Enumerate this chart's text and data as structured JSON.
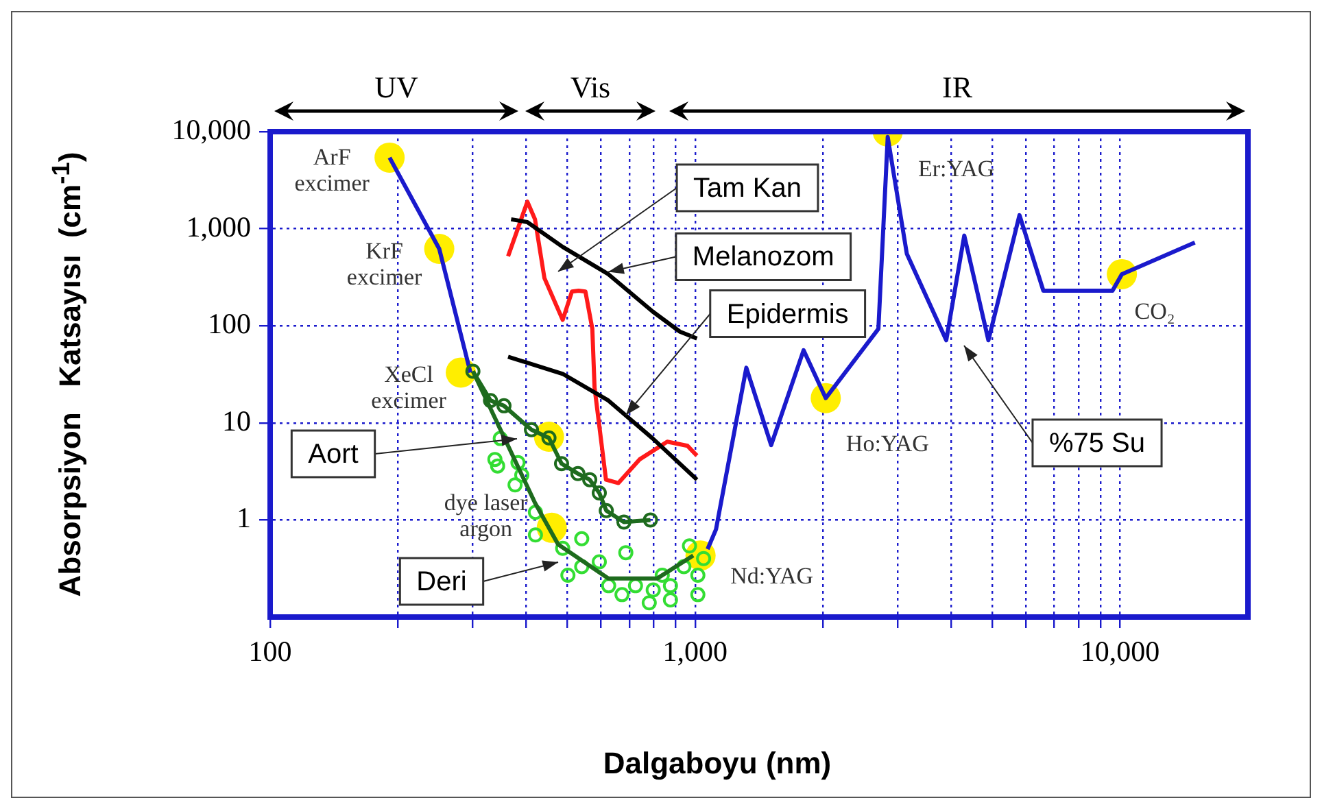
{
  "chart_data": {
    "type": "line",
    "xlabel": "Dalgaboyu (nm)",
    "ylabel": "Absorpsiyon   Katsayısı  (cm$^{-1}$)",
    "log": "xy",
    "grid": true,
    "legend": false,
    "xlim": [
      100,
      20000
    ],
    "ylim": [
      0.1,
      10000
    ],
    "xticks": [
      {
        "value": 100,
        "label": "100"
      },
      {
        "value": 200,
        "label": null
      },
      {
        "value": 300,
        "label": null
      },
      {
        "value": 400,
        "label": null
      },
      {
        "value": 500,
        "label": null
      },
      {
        "value": 600,
        "label": null
      },
      {
        "value": 700,
        "label": null
      },
      {
        "value": 800,
        "label": null
      },
      {
        "value": 900,
        "label": null
      },
      {
        "value": 1000,
        "label": "1,000"
      },
      {
        "value": 2000,
        "label": null
      },
      {
        "value": 3000,
        "label": null
      },
      {
        "value": 4000,
        "label": null
      },
      {
        "value": 5000,
        "label": null
      },
      {
        "value": 6000,
        "label": null
      },
      {
        "value": 7000,
        "label": null
      },
      {
        "value": 8000,
        "label": null
      },
      {
        "value": 9000,
        "label": null
      },
      {
        "value": 10000,
        "label": "10,000"
      }
    ],
    "yticks": [
      {
        "value": 10000,
        "label": "10,000"
      },
      {
        "value": 1000,
        "label": "1,000"
      },
      100,
      10,
      1
    ],
    "series": [
      {
        "type": "scatter",
        "color": "#ffee00",
        "marker": "circle",
        "x": [
          191,
          250,
          281,
          453,
          460,
          1030,
          2030,
          2840,
          10100
        ],
        "values": [
          5400,
          620,
          33,
          7.2,
          0.83,
          0.43,
          18,
          10000,
          340
        ]
      },
      {
        "type": "line",
        "color": "#1a1acc",
        "marker": "none",
        "line_style": "solid",
        "x": [
          191,
          250,
          296,
          700,
          1070,
          1120,
          1320,
          1510,
          1800,
          2030,
          2700,
          2840,
          3150,
          3900,
          4300,
          4900,
          5800,
          6600,
          9600,
          10100,
          15000
        ],
        "values": [
          5400,
          620,
          33,
          null,
          0.5,
          0.8,
          37,
          5.9,
          56,
          18,
          93,
          8800,
          550,
          71,
          850,
          71,
          1380,
          230,
          230,
          340,
          720
        ]
      },
      {
        "type": "line",
        "color": "#ff1a1a",
        "marker": "none",
        "line_style": "solid",
        "x": [
          363,
          403,
          420,
          442,
          488,
          513,
          532,
          552,
          573,
          580,
          617,
          660,
          740,
          860,
          960,
          1010
        ],
        "values": [
          520,
          1900,
          1250,
          310,
          115,
          225,
          230,
          225,
          93,
          23,
          2.6,
          2.4,
          4.2,
          6.4,
          5.8,
          4.6
        ]
      },
      {
        "type": "line",
        "color": "#000000",
        "marker": "none",
        "line_style": "solid",
        "x": [
          369,
          403,
          488,
          625,
          795,
          921,
          1010
        ],
        "values": [
          1250,
          1170,
          650,
          340,
          140,
          87,
          74
        ]
      },
      {
        "type": "line",
        "color": "#000000",
        "marker": "none",
        "line_style": "solid",
        "x": [
          363,
          488,
          625,
          795,
          1010
        ],
        "values": [
          48,
          32,
          17,
          6.9,
          2.6
        ]
      },
      {
        "type": "scatter",
        "color": "#33dd33",
        "marker": "circle",
        "x": [
          348,
          338,
          343,
          383,
          391,
          377,
          421,
          421,
          488,
          541,
          502,
          541,
          595,
          687,
          626,
          673,
          724,
          780,
          797,
          837,
          875,
          875,
          941,
          970,
          1015,
          1015,
          1047
        ],
        "values": [
          6.9,
          4.2,
          3.6,
          3.9,
          2.9,
          2.3,
          1.2,
          0.7,
          0.51,
          0.64,
          0.27,
          0.33,
          0.37,
          0.46,
          0.21,
          0.17,
          0.21,
          0.14,
          0.19,
          0.27,
          0.21,
          0.15,
          0.33,
          0.54,
          0.27,
          0.17,
          0.4
        ]
      },
      {
        "type": "line",
        "color": "#1e6b1e",
        "marker": "circle",
        "line_style": "solid",
        "x": [
          300,
          330,
          355,
          412,
          453,
          485,
          530,
          565,
          595,
          618,
          680,
          785
        ],
        "values": [
          34,
          17,
          15,
          8.5,
          7,
          3.8,
          3.0,
          2.6,
          1.9,
          1.25,
          0.95,
          1.0
        ]
      },
      {
        "type": "line",
        "color": "#1e6b1e",
        "marker": "none",
        "line_style": "solid",
        "x": [
          300,
          420,
          476,
          625,
          815,
          990
        ],
        "values": [
          34,
          1.5,
          0.56,
          0.25,
          0.25,
          0.43
        ]
      }
    ],
    "annotations": [
      "Tam Kan",
      {
        "text": "Melanozom",
        "x": 625,
        "y": 360
      },
      {
        "text": "Epidermis",
        "x": 687,
        "y": 12
      },
      "Aort",
      "Deri",
      "%75 Su",
      {
        "text": "ArF\nexcimer",
        "x": 191,
        "y": 5400
      },
      {
        "text": "KrF\nexcimer",
        "x": 250,
        "y": 620
      },
      {
        "text": "XeCl\nexcimer",
        "x": 281,
        "y": 33
      },
      {
        "text": "dye laser\nargon",
        "x": 460,
        "y": 0.83
      },
      {
        "text": "Nd:YAG",
        "x": 1030,
        "y": 0.43
      },
      {
        "text": "Ho:YAG",
        "x": 2030,
        "y": 18
      },
      {
        "text": "Er:YAG",
        "x": 2840,
        "y": 10000
      },
      {
        "text": "CO₂",
        "x": 10100,
        "y": 340
      },
      "UV",
      "Vis",
      "IR"
    ]
  }
}
